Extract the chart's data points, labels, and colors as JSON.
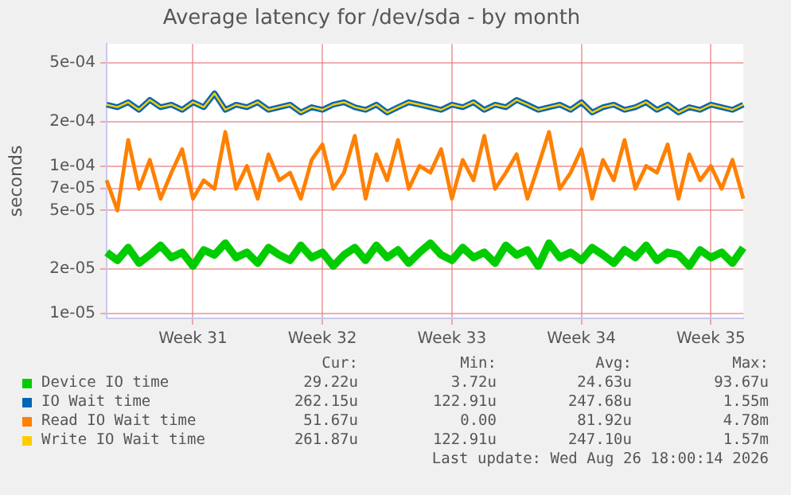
{
  "chart_data": {
    "type": "line",
    "title": "Average latency for /dev/sda - by month",
    "ylabel": "seconds",
    "log": "y",
    "grid": true,
    "legend": "bottom",
    "marker": "none",
    "line_style": "solid",
    "categories": [
      null,
      null,
      null,
      null,
      null,
      null,
      null,
      null,
      "Week 31",
      null,
      null,
      null,
      null,
      null,
      null,
      null,
      null,
      null,
      null,
      null,
      "Week 32",
      null,
      null,
      null,
      null,
      null,
      null,
      null,
      null,
      null,
      null,
      null,
      "Week 33",
      null,
      null,
      null,
      null,
      null,
      null,
      null,
      null,
      null,
      null,
      null,
      "Week 34",
      null,
      null,
      null,
      null,
      null,
      null,
      null,
      null,
      null,
      null,
      null,
      "Week 35",
      null,
      null,
      null
    ],
    "ylim": [
      9.3e-06,
      0.00067
    ],
    "yticks": [
      {
        "value": 1e-05,
        "label": "1e-05"
      },
      {
        "value": 2e-05,
        "label": "2e-05"
      },
      {
        "value": 5e-05,
        "label": "5e-05"
      },
      {
        "value": 7e-05,
        "label": "7e-05"
      },
      {
        "value": 0.0001,
        "label": "1e-04"
      },
      {
        "value": 0.0002,
        "label": "2e-04"
      },
      {
        "value": 0.0005,
        "label": "5e-04"
      }
    ],
    "series": [
      {
        "name": "Device IO time",
        "color": "#00cc00",
        "values": [
          2.6e-05,
          2.3e-05,
          2.8e-05,
          2.2e-05,
          2.5e-05,
          2.9e-05,
          2.4e-05,
          2.6e-05,
          2.1e-05,
          2.7e-05,
          2.5e-05,
          3e-05,
          2.4e-05,
          2.6e-05,
          2.2e-05,
          2.8e-05,
          2.5e-05,
          2.3e-05,
          2.9e-05,
          2.4e-05,
          2.6e-05,
          2.1e-05,
          2.5e-05,
          2.8e-05,
          2.3e-05,
          2.9e-05,
          2.4e-05,
          2.7e-05,
          2.2e-05,
          2.6e-05,
          3e-05,
          2.5e-05,
          2.3e-05,
          2.8e-05,
          2.4e-05,
          2.6e-05,
          2.2e-05,
          2.9e-05,
          2.5e-05,
          2.7e-05,
          2.1e-05,
          3e-05,
          2.4e-05,
          2.6e-05,
          2.3e-05,
          2.8e-05,
          2.5e-05,
          2.2e-05,
          2.7e-05,
          2.4e-05,
          2.9e-05,
          2.3e-05,
          2.6e-05,
          2.5e-05,
          2.1e-05,
          2.7e-05,
          2.4e-05,
          2.6e-05,
          2.2e-05,
          2.8e-05
        ]
      },
      {
        "name": "IO Wait time",
        "color": "#0066b3",
        "values": [
          0.00026,
          0.00025,
          0.00027,
          0.00024,
          0.00028,
          0.00025,
          0.00026,
          0.00024,
          0.00027,
          0.00025,
          0.00031,
          0.00024,
          0.00026,
          0.00025,
          0.00027,
          0.00024,
          0.00025,
          0.00026,
          0.00023,
          0.00025,
          0.00024,
          0.00026,
          0.00027,
          0.00025,
          0.00024,
          0.00026,
          0.00023,
          0.00025,
          0.00027,
          0.00026,
          0.00025,
          0.00024,
          0.00026,
          0.00025,
          0.00027,
          0.00024,
          0.00026,
          0.00025,
          0.00028,
          0.00026,
          0.00024,
          0.00025,
          0.00026,
          0.00024,
          0.00027,
          0.00023,
          0.00025,
          0.00026,
          0.00024,
          0.00025,
          0.00027,
          0.00024,
          0.00026,
          0.00023,
          0.00025,
          0.00024,
          0.00026,
          0.00025,
          0.00024,
          0.00026
        ]
      },
      {
        "name": "Read IO Wait time",
        "color": "#ff8000",
        "values": [
          8e-05,
          5e-05,
          0.00015,
          7e-05,
          0.00011,
          6e-05,
          9e-05,
          0.00013,
          6e-05,
          8e-05,
          7e-05,
          0.00017,
          7e-05,
          0.0001,
          6e-05,
          0.00012,
          8e-05,
          9e-05,
          6e-05,
          0.00011,
          0.00014,
          7e-05,
          9e-05,
          0.00016,
          6e-05,
          0.00012,
          8e-05,
          0.00015,
          7e-05,
          0.0001,
          9e-05,
          0.00013,
          6e-05,
          0.00011,
          8e-05,
          0.00016,
          7e-05,
          9e-05,
          0.00012,
          6e-05,
          0.0001,
          0.00017,
          7e-05,
          9e-05,
          0.00013,
          6e-05,
          0.00011,
          8e-05,
          0.00015,
          7e-05,
          0.0001,
          9e-05,
          0.00014,
          6e-05,
          0.00012,
          8e-05,
          0.0001,
          7e-05,
          0.00011,
          6e-05
        ]
      },
      {
        "name": "Write IO Wait time",
        "color": "#ffcc00",
        "values": [
          0.00026,
          0.00025,
          0.00027,
          0.00024,
          0.00028,
          0.00025,
          0.00026,
          0.00024,
          0.00027,
          0.00025,
          0.00031,
          0.00024,
          0.00026,
          0.00025,
          0.00027,
          0.00024,
          0.00025,
          0.00026,
          0.00023,
          0.00025,
          0.00024,
          0.00026,
          0.00027,
          0.00025,
          0.00024,
          0.00026,
          0.00023,
          0.00025,
          0.00027,
          0.00026,
          0.00025,
          0.00024,
          0.00026,
          0.00025,
          0.00027,
          0.00024,
          0.00026,
          0.00025,
          0.00028,
          0.00026,
          0.00024,
          0.00025,
          0.00026,
          0.00024,
          0.00027,
          0.00023,
          0.00025,
          0.00026,
          0.00024,
          0.00025,
          0.00027,
          0.00024,
          0.00026,
          0.00023,
          0.00025,
          0.00024,
          0.00026,
          0.00025,
          0.00024,
          0.00026
        ]
      }
    ],
    "annotations": [
      "Cur:",
      "Min:",
      "Avg:",
      "Max:",
      "29.22u",
      "3.72u",
      "24.63u",
      "93.67u",
      "262.15u",
      "122.91u",
      "247.68u",
      "1.55m",
      "51.67u",
      "0.00",
      "81.92u",
      "4.78m",
      "261.87u",
      "122.91u",
      "247.10u",
      "1.57m",
      "Last update: Wed Aug 26 18:00:14 2026"
    ]
  }
}
